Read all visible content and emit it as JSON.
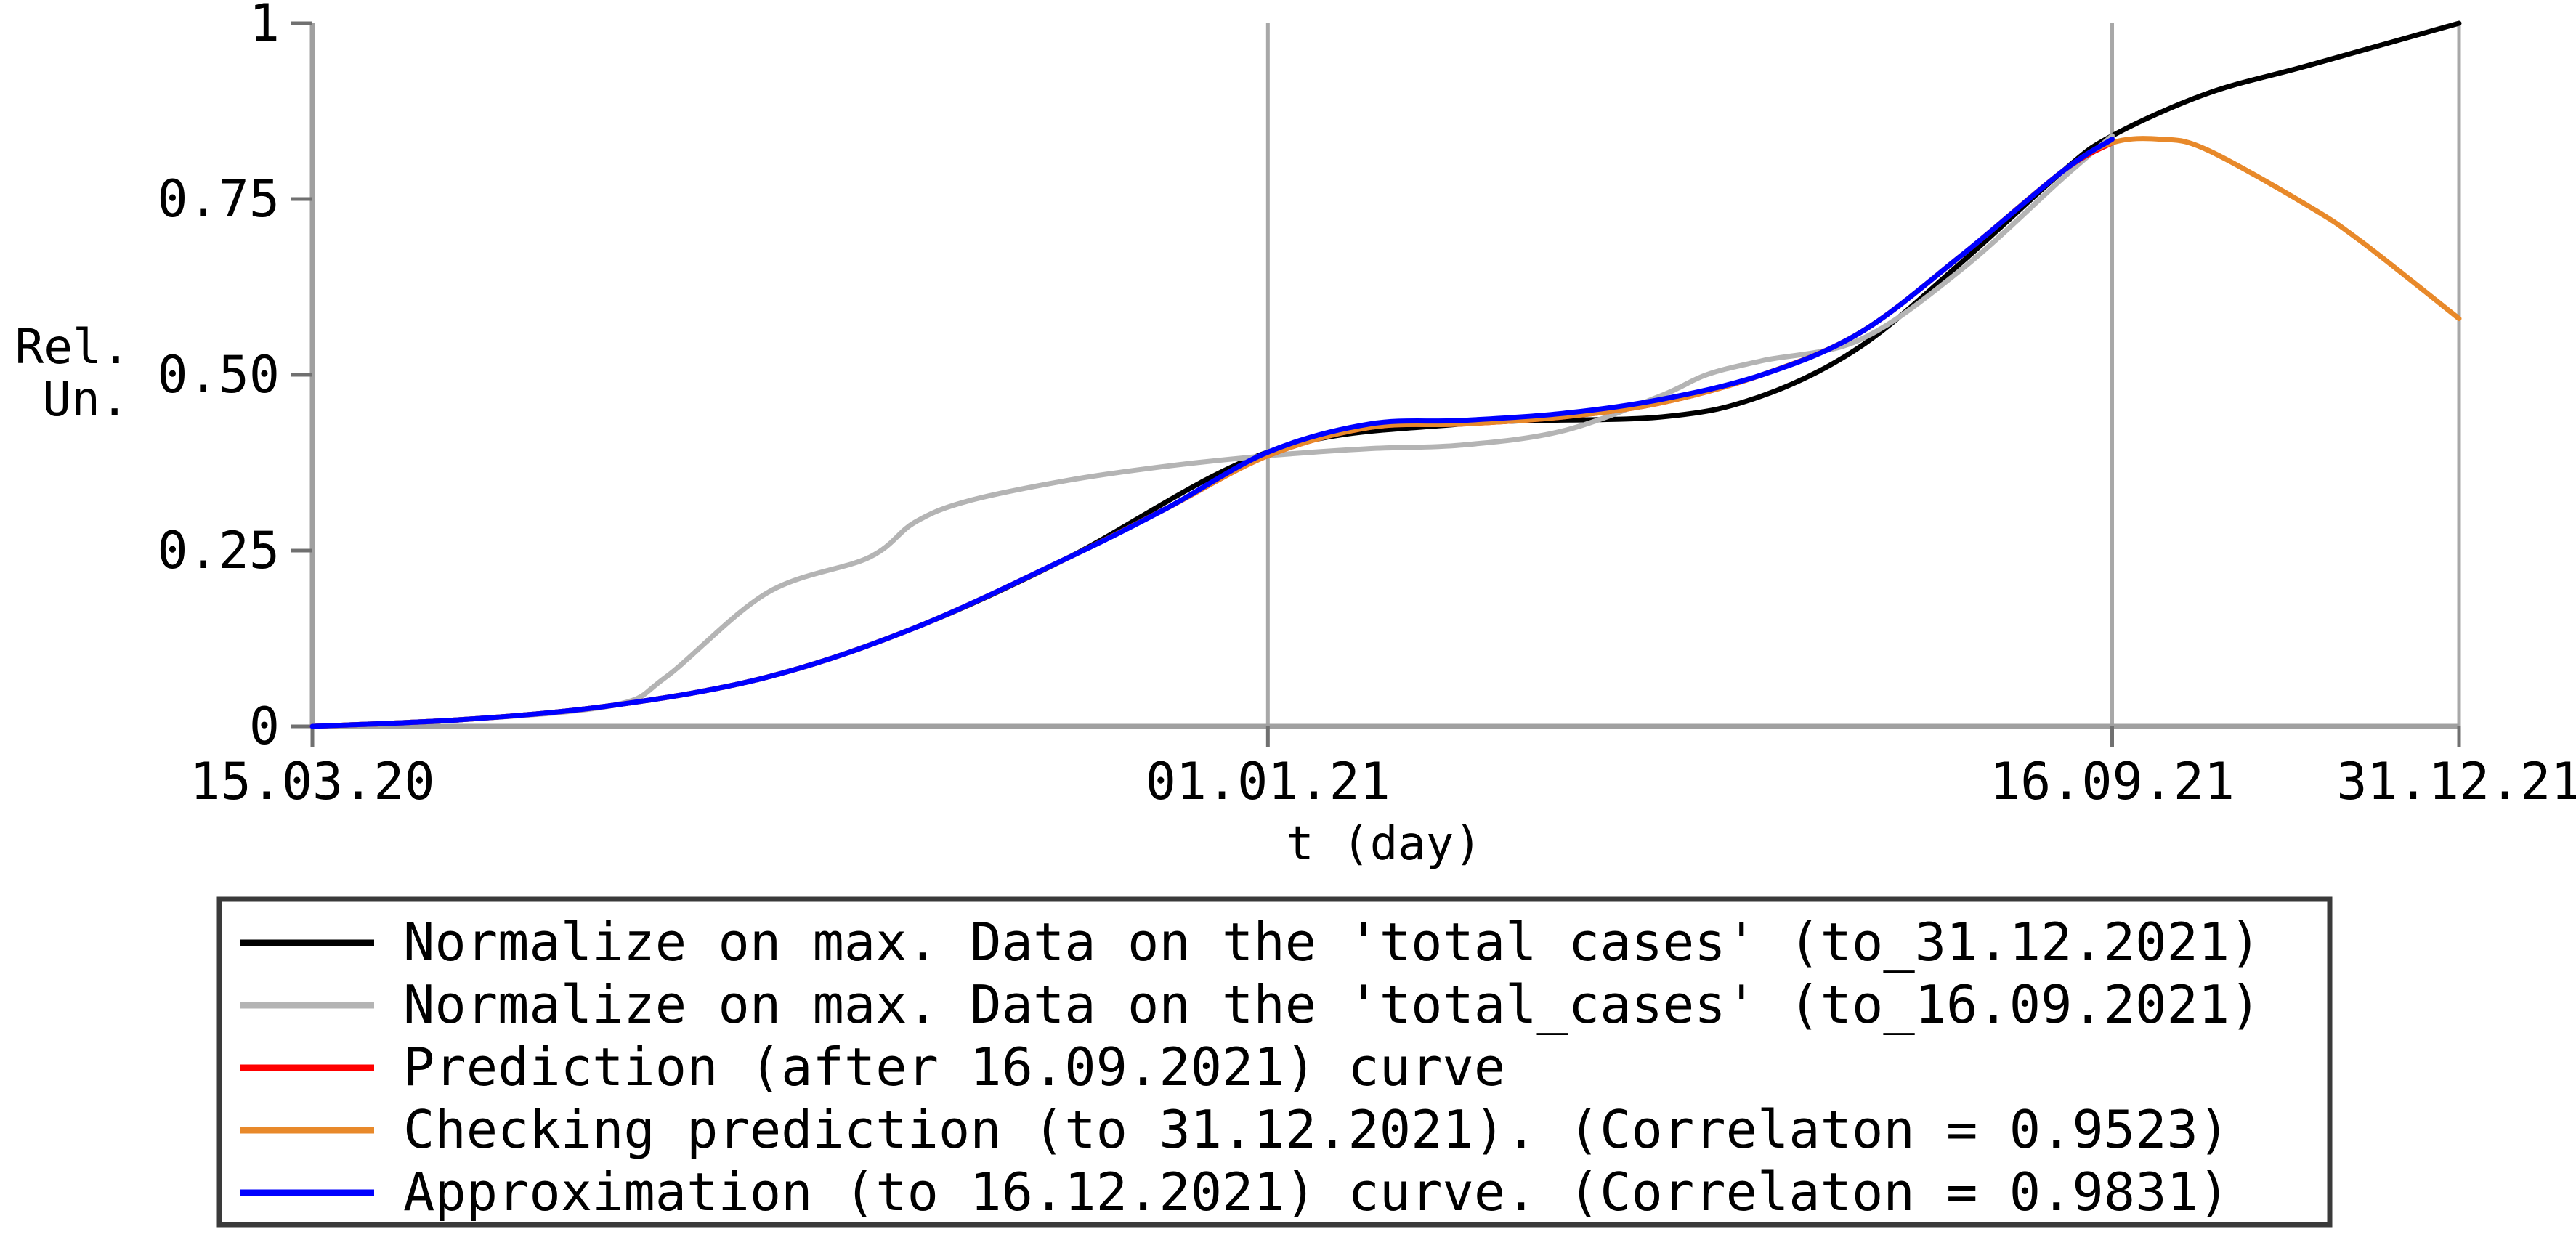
{
  "chart_data": {
    "type": "line",
    "title": "",
    "ylabel": [
      "Rel.",
      "Un."
    ],
    "xlabel": "t (day)",
    "xlim": [
      "15.03.20",
      "31.12.21"
    ],
    "ylim": [
      0,
      1
    ],
    "x_ticks": [
      "15.03.20",
      "01.01.21",
      "16.09.21",
      "31.12.21"
    ],
    "y_ticks": [
      "1",
      "0.75",
      "0.50",
      "0.25",
      "0"
    ],
    "grid": "vertical lines at 01.01.21, 16.09.21, 31.12.21",
    "legend_position": "bottom",
    "series": [
      {
        "name": "Normalize on max. Data on the 'total cases' (to_31.12.2021)",
        "color": "#000000",
        "x": [
          "15.03.20",
          "01.05.20",
          "15.06.20",
          "01.08.20",
          "15.09.20",
          "01.11.20",
          "01.01.21",
          "01.03.21",
          "01.05.21",
          "01.06.21",
          "01.07.21",
          "01.08.21",
          "01.09.21",
          "16.09.21",
          "15.10.21",
          "15.11.21",
          "31.12.21"
        ],
        "y": [
          0,
          0.01,
          0.03,
          0.07,
          0.14,
          0.24,
          0.39,
          0.43,
          0.44,
          0.47,
          0.54,
          0.66,
          0.79,
          0.84,
          0.9,
          0.94,
          1.0
        ]
      },
      {
        "name": "Normalize on max. Data on the 'total_cases' (to_16.09.2021)",
        "color": "#b4b4b4",
        "x": [
          "15.03.20",
          "01.05.20",
          "15.06.20",
          "01.07.20",
          "01.08.20",
          "01.09.20",
          "15.09.20",
          "01.10.20",
          "01.11.20",
          "01.12.20",
          "01.01.21",
          "01.02.21",
          "01.03.21",
          "01.04.21",
          "01.05.21",
          "15.05.21",
          "01.06.21",
          "01.07.21",
          "01.08.21",
          "01.09.21",
          "16.09.21"
        ],
        "y": [
          0,
          0.01,
          0.03,
          0.07,
          0.19,
          0.24,
          0.29,
          0.32,
          0.35,
          0.37,
          0.385,
          0.395,
          0.4,
          0.42,
          0.47,
          0.5,
          0.52,
          0.55,
          0.65,
          0.78,
          0.84
        ]
      },
      {
        "name": "Prediction (after 16.09.2021) curve",
        "color": "#ff0000",
        "x": [
          "15.03.20",
          "01.05.20",
          "15.06.20",
          "01.08.20",
          "15.09.20",
          "01.11.20",
          "01.12.20",
          "01.01.21",
          "01.02.21",
          "01.03.21",
          "01.04.21",
          "01.05.21",
          "01.06.21",
          "01.07.21",
          "01.08.21",
          "01.09.21",
          "16.09.21"
        ],
        "y": [
          0,
          0.01,
          0.03,
          0.07,
          0.14,
          0.24,
          0.31,
          0.385,
          0.425,
          0.43,
          0.44,
          0.46,
          0.5,
          0.56,
          0.67,
          0.79,
          0.83
        ]
      },
      {
        "name": "Checking prediction (to 31.12.2021). (Correlaton = 0.9523)",
        "color": "#e8892a",
        "x": [
          "15.03.20",
          "01.05.20",
          "15.06.20",
          "01.08.20",
          "15.09.20",
          "01.11.20",
          "01.12.20",
          "01.01.21",
          "01.02.21",
          "01.03.21",
          "01.04.21",
          "01.05.21",
          "01.06.21",
          "01.07.21",
          "01.08.21",
          "01.09.21",
          "16.09.21",
          "01.10.21",
          "15.10.21",
          "15.11.21",
          "01.12.21",
          "31.12.21"
        ],
        "y": [
          0,
          0.01,
          0.03,
          0.07,
          0.14,
          0.24,
          0.31,
          0.385,
          0.425,
          0.43,
          0.44,
          0.46,
          0.5,
          0.56,
          0.67,
          0.79,
          0.83,
          0.835,
          0.82,
          0.74,
          0.69,
          0.58
        ]
      },
      {
        "name": "Approximation (to 16.12.2021) curve. (Correlaton = 0.9831)",
        "color": "#0000ff",
        "x": [
          "15.03.20",
          "01.05.20",
          "15.06.20",
          "01.08.20",
          "15.09.20",
          "01.11.20",
          "01.12.20",
          "01.01.21",
          "01.02.21",
          "01.03.21",
          "01.04.21",
          "01.05.21",
          "01.06.21",
          "01.07.21",
          "01.08.21",
          "01.09.21",
          "16.09.21"
        ],
        "y": [
          0,
          0.01,
          0.03,
          0.07,
          0.14,
          0.24,
          0.31,
          0.39,
          0.43,
          0.435,
          0.445,
          0.465,
          0.5,
          0.56,
          0.67,
          0.79,
          0.835
        ]
      }
    ]
  }
}
